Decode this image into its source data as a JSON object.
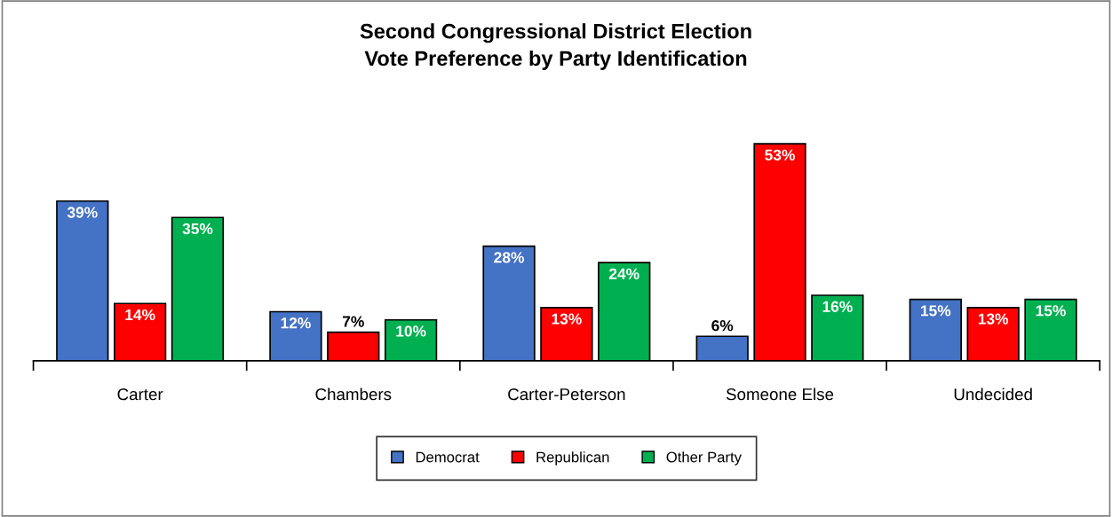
{
  "chart_data": {
    "type": "bar",
    "title": "Second Congressional District Election\nVote Preference by Party Identification",
    "categories": [
      "Carter",
      "Chambers",
      "Carter-Peterson",
      "Someone Else",
      "Undecided"
    ],
    "series": [
      {
        "name": "Democrat",
        "color": "#4472c4",
        "values": [
          39,
          12,
          28,
          6,
          15
        ],
        "value_labels": [
          "39%",
          "12%",
          "28%",
          "6%",
          "15%"
        ]
      },
      {
        "name": "Republican",
        "color": "#ff0000",
        "values": [
          14,
          7,
          13,
          53,
          13
        ],
        "value_labels": [
          "14%",
          "7%",
          "13%",
          "53%",
          "13%"
        ]
      },
      {
        "name": "Other Party",
        "color": "#00b050",
        "values": [
          35,
          10,
          24,
          16,
          15
        ],
        "value_labels": [
          "35%",
          "10%",
          "24%",
          "16%",
          "15%"
        ]
      }
    ],
    "legend": "bottom",
    "grid": false
  }
}
